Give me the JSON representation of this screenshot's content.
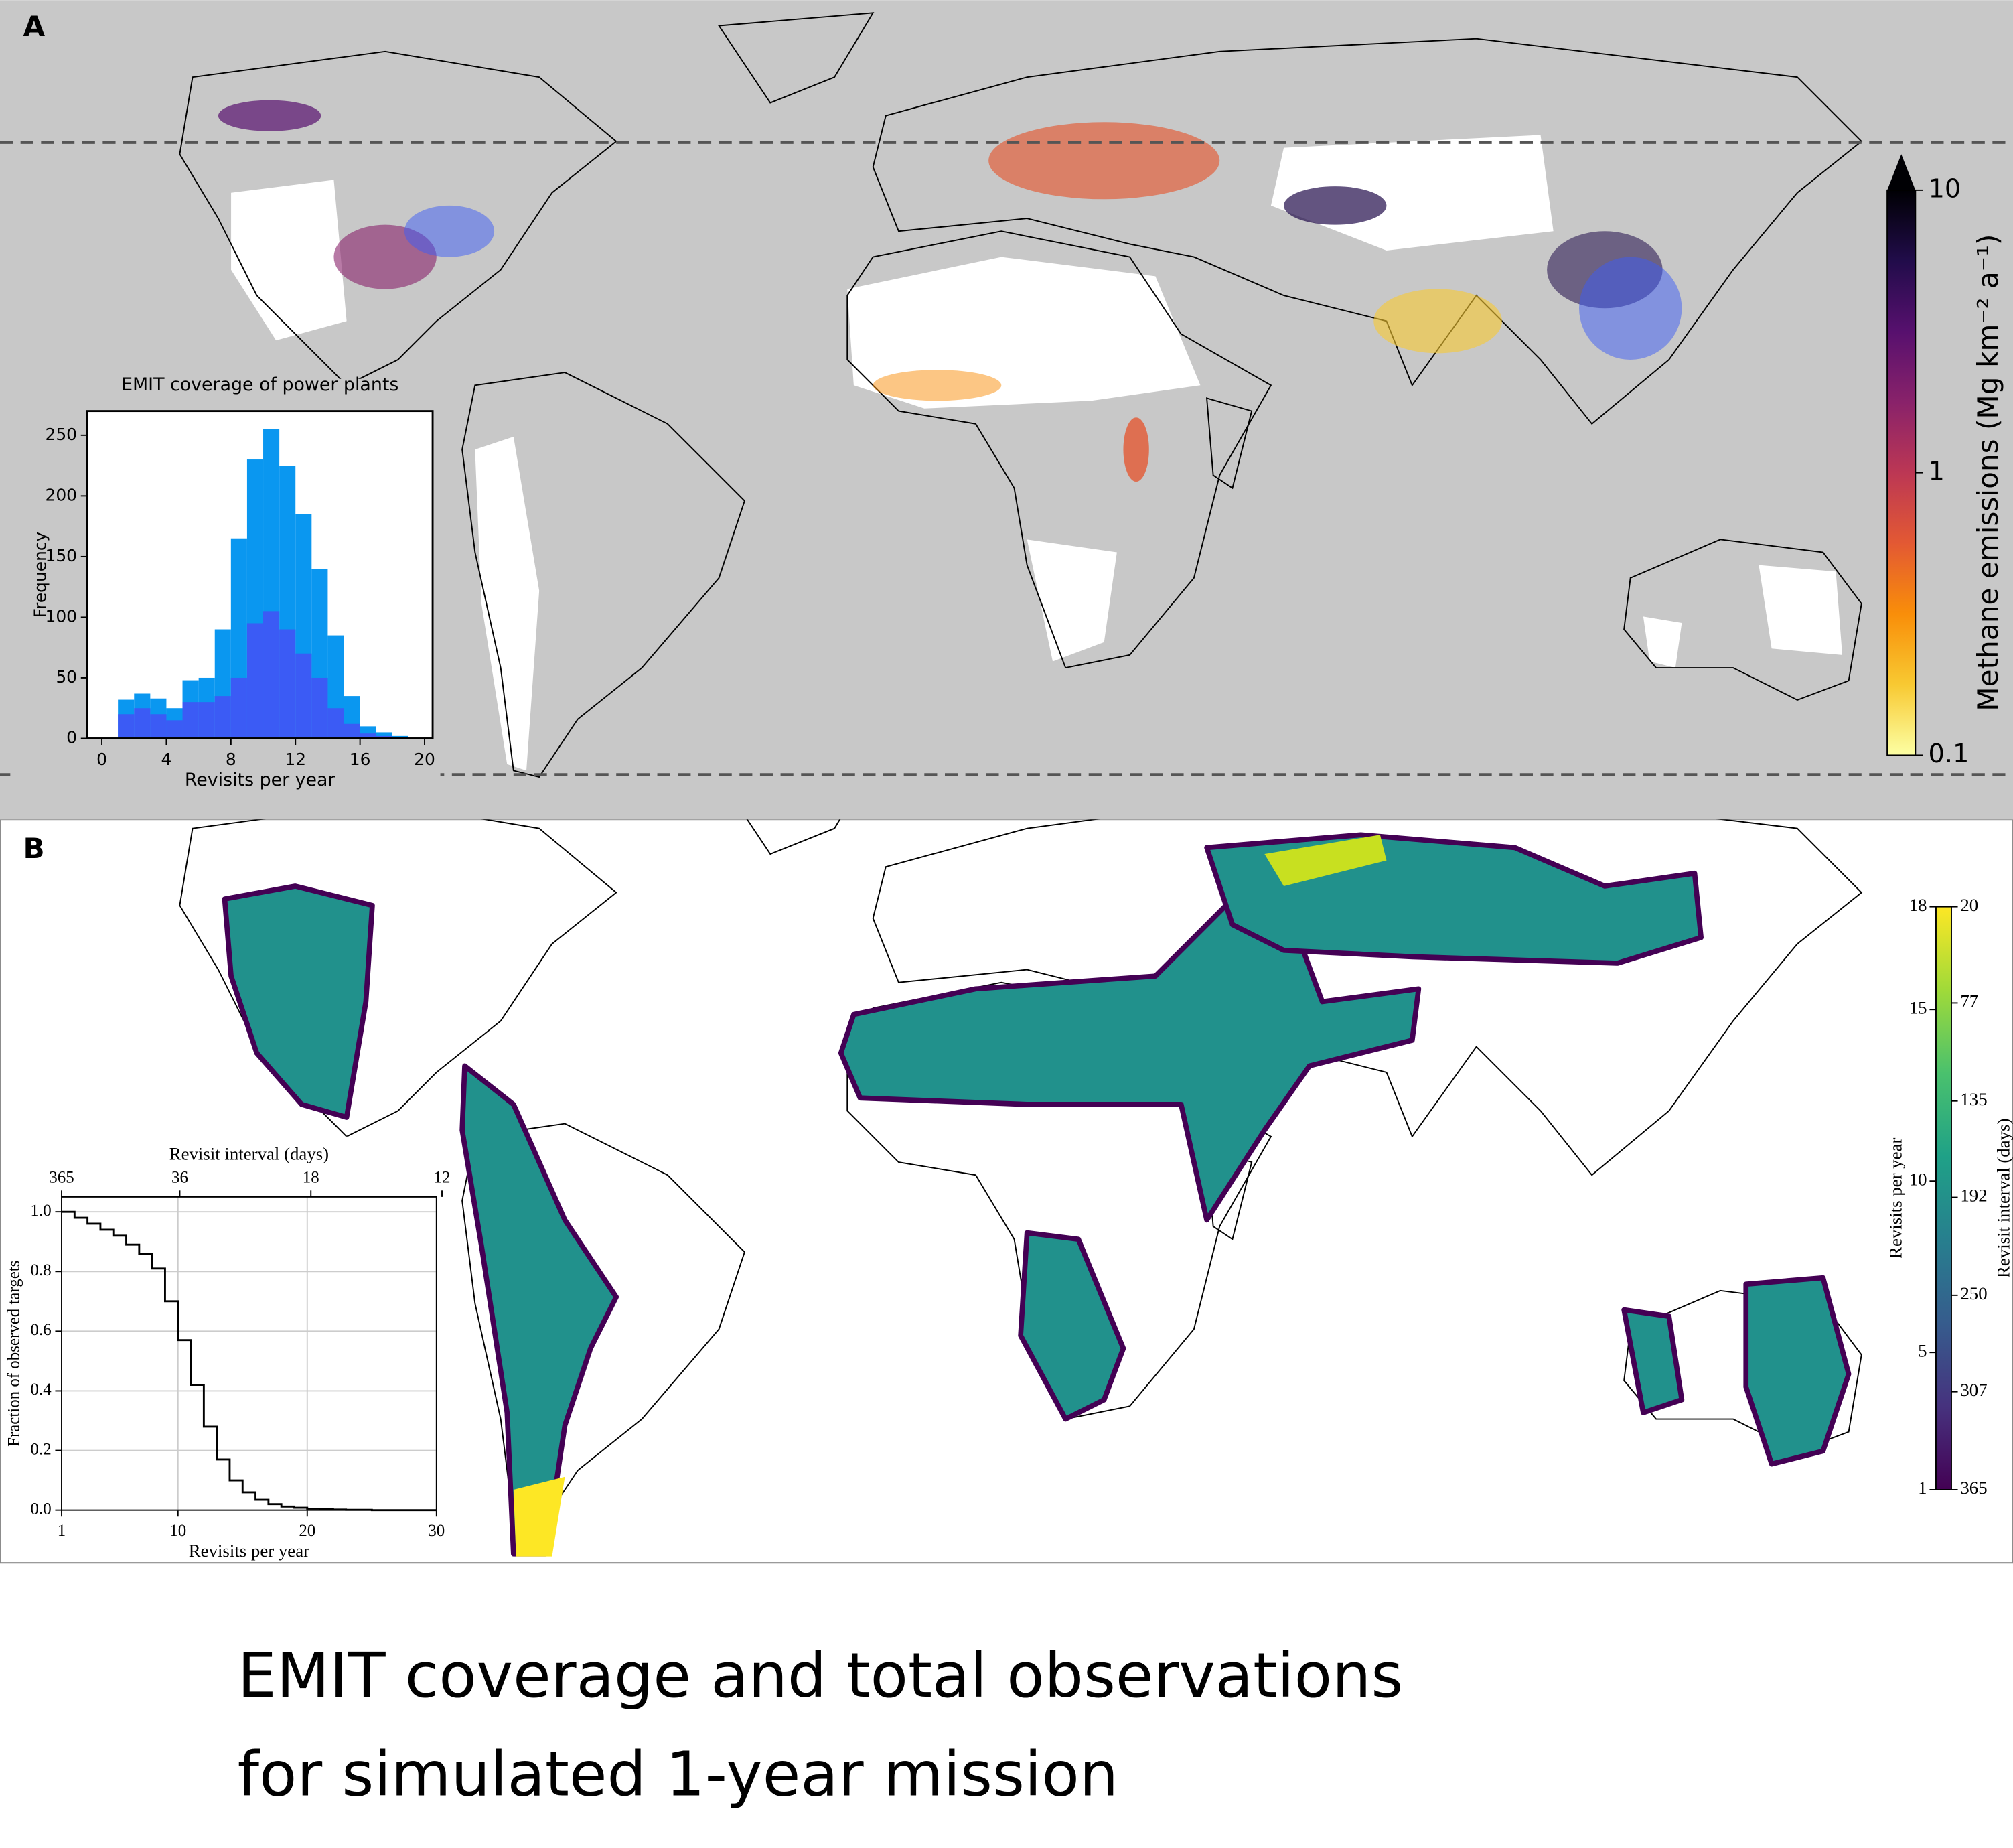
{
  "panels": [
    "A",
    "B"
  ],
  "caption": [
    "EMIT coverage and total observations",
    "for simulated 1-year mission"
  ],
  "chart_data": [
    {
      "type": "histogram",
      "title": "EMIT coverage of power plants",
      "xlabel": "Revisits per year",
      "ylabel": "Frequency",
      "bins": [
        1,
        2,
        3,
        4,
        5,
        6,
        7,
        8,
        9,
        10,
        11,
        12,
        13,
        14,
        15,
        16,
        17,
        18,
        19
      ],
      "series": [
        {
          "color": "#0a97f0",
          "values": [
            32,
            37,
            33,
            25,
            48,
            50,
            90,
            165,
            230,
            255,
            225,
            185,
            140,
            85,
            35,
            10,
            5,
            2
          ]
        },
        {
          "color": "#3b5bf5",
          "values": [
            20,
            25,
            20,
            15,
            30,
            30,
            35,
            50,
            95,
            105,
            90,
            70,
            50,
            25,
            12,
            4,
            2,
            1
          ]
        }
      ],
      "xlim": [
        -0.9,
        20.5
      ],
      "xticks": [
        0,
        4,
        8,
        12,
        16,
        20
      ],
      "ylim": [
        0,
        270
      ],
      "yticks": [
        0,
        50,
        100,
        150,
        200,
        250
      ]
    },
    {
      "type": "step",
      "xlabel": "Revisits per year",
      "ylabel": "Fraction of observed targets",
      "x2label": "Revisit interval (days)",
      "x": [
        1,
        2,
        3,
        4,
        5,
        6,
        7,
        8,
        9,
        10,
        11,
        12,
        13,
        14,
        15,
        16,
        17,
        18,
        19,
        20,
        21,
        22,
        23,
        24,
        25,
        26,
        27,
        28,
        29,
        30
      ],
      "values": [
        1.0,
        0.98,
        0.96,
        0.94,
        0.92,
        0.89,
        0.86,
        0.81,
        0.7,
        0.57,
        0.42,
        0.28,
        0.17,
        0.1,
        0.06,
        0.035,
        0.02,
        0.012,
        0.008,
        0.005,
        0.003,
        0.002,
        0.001,
        0.001,
        0,
        0,
        0,
        0,
        0,
        0
      ],
      "color": "#000000",
      "xlim": [
        1,
        30
      ],
      "xticks": [
        1,
        10,
        20,
        30
      ],
      "ylim": [
        0,
        1.05
      ],
      "yticks": [
        {
          "value": 0,
          "label": "0.0"
        },
        0.2,
        0.4,
        0.6,
        0.8,
        {
          "value": 1,
          "label": "1.0"
        }
      ],
      "x2lim": [
        365,
        12.17
      ],
      "x2scale": "reciprocal",
      "x2ticks": [
        365,
        36,
        18,
        12
      ],
      "grid": true
    },
    {
      "type": "colorbar",
      "label": "Methane emissions (Mg km⁻² a⁻¹)",
      "scale": "log",
      "ylim": [
        0.1,
        10
      ],
      "yticks": [
        0.1,
        1,
        10
      ],
      "extend": "max",
      "colors": [
        "#fcffa4",
        "#f8c932",
        "#f98e09",
        "#e35933",
        "#bc3754",
        "#89226a",
        "#57106e",
        "#210c4a",
        "#000004"
      ]
    },
    {
      "type": "colorbar",
      "label": "Revisits per year",
      "ylim": [
        1,
        18
      ],
      "yticks": [
        1,
        5,
        10,
        15,
        18
      ],
      "y2label": "Revisit interval (days)",
      "y2lim": [
        365,
        20
      ],
      "y2ticks": [
        20,
        77,
        135,
        192,
        250,
        307,
        365
      ],
      "colors": [
        "#440154",
        "#46327e",
        "#365c8d",
        "#277f8e",
        "#1fa187",
        "#4ac16d",
        "#a0da39",
        "#fde725"
      ]
    }
  ]
}
